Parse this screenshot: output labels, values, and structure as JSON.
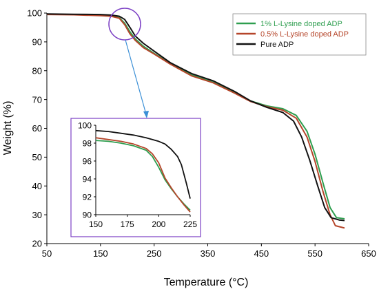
{
  "chart_data": {
    "type": "line",
    "xlabel": "Temperature (°C)",
    "ylabel": "Weight (%)",
    "xlim": [
      50,
      650
    ],
    "ylim": [
      20,
      100
    ],
    "xticks": [
      50,
      150,
      250,
      350,
      450,
      550,
      650
    ],
    "yticks": [
      20,
      30,
      40,
      50,
      60,
      70,
      80,
      90,
      100
    ],
    "grid": false,
    "legend_position": "top-right",
    "series": [
      {
        "name": "1% L-Lysine doped ADP",
        "color": "#2e9e4f",
        "points": [
          [
            50,
            99.6
          ],
          [
            100,
            99.5
          ],
          [
            150,
            99.3
          ],
          [
            170,
            99.1
          ],
          [
            185,
            98.4
          ],
          [
            195,
            96.5
          ],
          [
            205,
            93.5
          ],
          [
            215,
            91.0
          ],
          [
            230,
            88.5
          ],
          [
            250,
            86.0
          ],
          [
            280,
            82.5
          ],
          [
            320,
            78.5
          ],
          [
            360,
            76.0
          ],
          [
            400,
            72.5
          ],
          [
            430,
            69.5
          ],
          [
            460,
            67.8
          ],
          [
            490,
            66.8
          ],
          [
            515,
            64.5
          ],
          [
            535,
            59.0
          ],
          [
            550,
            51.0
          ],
          [
            565,
            41.0
          ],
          [
            578,
            32.5
          ],
          [
            590,
            29.0
          ],
          [
            605,
            28.6
          ]
        ]
      },
      {
        "name": "0.5% L-Lysine doped ADP",
        "color": "#b5452a",
        "points": [
          [
            50,
            99.5
          ],
          [
            100,
            99.4
          ],
          [
            150,
            99.1
          ],
          [
            170,
            98.9
          ],
          [
            185,
            98.2
          ],
          [
            195,
            96.0
          ],
          [
            205,
            92.8
          ],
          [
            215,
            90.5
          ],
          [
            230,
            88.0
          ],
          [
            250,
            85.8
          ],
          [
            280,
            82.3
          ],
          [
            320,
            78.2
          ],
          [
            360,
            75.8
          ],
          [
            400,
            72.2
          ],
          [
            430,
            69.3
          ],
          [
            460,
            67.5
          ],
          [
            490,
            66.3
          ],
          [
            515,
            63.5
          ],
          [
            535,
            57.0
          ],
          [
            550,
            48.5
          ],
          [
            565,
            38.0
          ],
          [
            578,
            30.0
          ],
          [
            588,
            26.2
          ],
          [
            605,
            25.4
          ]
        ]
      },
      {
        "name": "Pure ADP",
        "color": "#111111",
        "points": [
          [
            50,
            99.7
          ],
          [
            100,
            99.6
          ],
          [
            150,
            99.5
          ],
          [
            170,
            99.3
          ],
          [
            185,
            98.9
          ],
          [
            195,
            97.8
          ],
          [
            205,
            95.0
          ],
          [
            215,
            92.0
          ],
          [
            230,
            89.5
          ],
          [
            250,
            86.8
          ],
          [
            280,
            82.8
          ],
          [
            320,
            79.0
          ],
          [
            360,
            76.5
          ],
          [
            400,
            72.8
          ],
          [
            430,
            69.5
          ],
          [
            460,
            67.3
          ],
          [
            490,
            65.5
          ],
          [
            510,
            62.5
          ],
          [
            525,
            57.0
          ],
          [
            540,
            49.0
          ],
          [
            555,
            40.0
          ],
          [
            568,
            32.5
          ],
          [
            580,
            29.0
          ],
          [
            595,
            28.2
          ],
          [
            605,
            28.0
          ]
        ]
      }
    ],
    "inset": {
      "xlim": [
        150,
        225
      ],
      "ylim": [
        90,
        100
      ],
      "xticks": [
        150,
        175,
        200,
        225
      ],
      "yticks": [
        90,
        92,
        94,
        96,
        98,
        100
      ],
      "series": [
        {
          "name": "1% L-Lysine doped ADP",
          "color": "#2e9e4f",
          "points": [
            [
              150,
              98.3
            ],
            [
              160,
              98.2
            ],
            [
              170,
              98.0
            ],
            [
              180,
              97.7
            ],
            [
              190,
              97.2
            ],
            [
              195,
              96.5
            ],
            [
              200,
              95.3
            ],
            [
              205,
              93.9
            ],
            [
              210,
              92.9
            ],
            [
              215,
              92.0
            ],
            [
              220,
              91.2
            ],
            [
              225,
              90.5
            ]
          ]
        },
        {
          "name": "0.5% L-Lysine doped ADP",
          "color": "#b5452a",
          "points": [
            [
              150,
              98.6
            ],
            [
              160,
              98.4
            ],
            [
              170,
              98.2
            ],
            [
              180,
              97.9
            ],
            [
              190,
              97.4
            ],
            [
              195,
              96.8
            ],
            [
              200,
              95.8
            ],
            [
              205,
              94.1
            ],
            [
              210,
              93.0
            ],
            [
              215,
              92.0
            ],
            [
              220,
              91.1
            ],
            [
              225,
              90.3
            ]
          ]
        },
        {
          "name": "Pure ADP",
          "color": "#111111",
          "points": [
            [
              150,
              99.4
            ],
            [
              160,
              99.3
            ],
            [
              170,
              99.1
            ],
            [
              180,
              98.9
            ],
            [
              190,
              98.6
            ],
            [
              200,
              98.2
            ],
            [
              205,
              97.9
            ],
            [
              210,
              97.3
            ],
            [
              215,
              96.5
            ],
            [
              218,
              95.6
            ],
            [
              222,
              93.5
            ],
            [
              225,
              91.8
            ]
          ]
        }
      ]
    }
  }
}
